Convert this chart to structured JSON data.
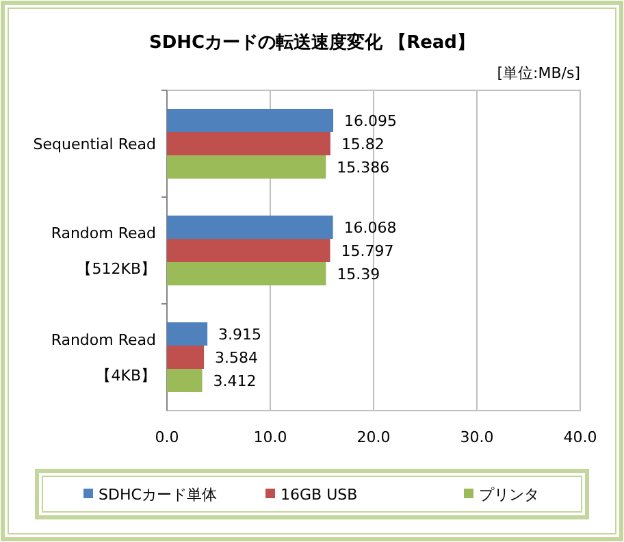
{
  "chart_data": {
    "type": "bar",
    "orientation": "horizontal",
    "title": "SDHCカードの転送速度変化 【Read】",
    "annotations": [
      "[単位:MB/s]"
    ],
    "categories": [
      "Sequential Read",
      "Random Read\n【512KB】",
      "Random Read\n【4KB】"
    ],
    "series": [
      {
        "name": "SDHCカード単体",
        "color": "#4f81bd",
        "values": [
          16.095,
          16.068,
          3.915
        ]
      },
      {
        "name": "16GB USB",
        "color": "#c0504d",
        "values": [
          15.82,
          15.797,
          3.584
        ]
      },
      {
        "name": "プリンタ",
        "color": "#9bbb59",
        "values": [
          15.386,
          15.39,
          3.412
        ]
      }
    ],
    "xlim": [
      0,
      40
    ],
    "xticks": [
      {
        "value": 0,
        "label": "0.0"
      },
      {
        "value": 10,
        "label": "10.0"
      },
      {
        "value": 20,
        "label": "20.0"
      },
      {
        "value": 30,
        "label": "30.0"
      },
      {
        "value": 40,
        "label": "40.0"
      }
    ],
    "grid": "x",
    "legend": "bottom",
    "data_labels": true
  }
}
